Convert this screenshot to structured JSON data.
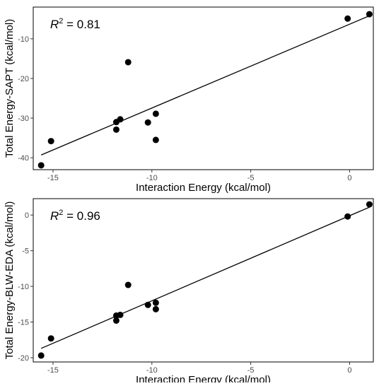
{
  "chart_data": [
    {
      "type": "scatter",
      "xlabel": "Interaction Energy (kcal/mol)",
      "ylabel": "Total Energy-SAPT (kcal/mol)",
      "annotation": {
        "symbol": "R",
        "sup": "2",
        "text": " = 0.81"
      },
      "xlim": [
        -16,
        1.2
      ],
      "ylim": [
        -43,
        -2
      ],
      "x_ticks": [
        -15,
        -10,
        -5,
        0
      ],
      "y_ticks": [
        -40,
        -30,
        -20,
        -10
      ],
      "grid": false,
      "x": [
        -15.6,
        -15.1,
        -11.8,
        -11.8,
        -11.6,
        -11.2,
        -10.2,
        -9.8,
        -9.8,
        -0.1,
        1.0
      ],
      "y": [
        -41.9,
        -35.8,
        -31.0,
        -32.9,
        -30.3,
        -15.9,
        -31.1,
        -35.5,
        -28.9,
        -4.9,
        -3.8
      ],
      "fit_line": {
        "x": [
          -15.6,
          1.0
        ],
        "y": [
          -39.3,
          -4.2
        ]
      },
      "marker_color": "#000000"
    },
    {
      "type": "scatter",
      "xlabel": "Interaction Energy (kcal/mol)",
      "ylabel": "Total Energy-BLW-EDA (kcal/mol)",
      "annotation": {
        "symbol": "R",
        "sup": "2",
        "text": " = 0.96"
      },
      "xlim": [
        -16,
        1.2
      ],
      "ylim": [
        -20.6,
        2.3
      ],
      "x_ticks": [
        -15,
        -10,
        -5,
        0
      ],
      "y_ticks": [
        -20,
        -15,
        -10,
        -5,
        0
      ],
      "grid": false,
      "x": [
        -15.6,
        -15.1,
        -11.8,
        -11.8,
        -11.6,
        -11.2,
        -10.2,
        -9.8,
        -9.8,
        -0.1,
        1.0
      ],
      "y": [
        -19.7,
        -17.3,
        -14.1,
        -14.8,
        -14.0,
        -9.8,
        -12.6,
        -13.2,
        -12.3,
        -0.2,
        1.5
      ],
      "fit_line": {
        "x": [
          -15.6,
          1.0
        ],
        "y": [
          -18.7,
          1.1
        ]
      },
      "marker_color": "#000000"
    }
  ]
}
